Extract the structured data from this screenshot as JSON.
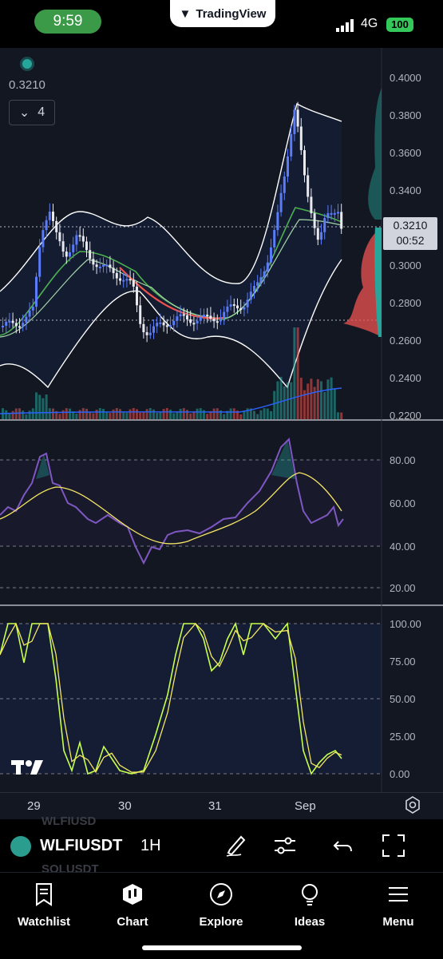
{
  "status_bar": {
    "time": "9:59",
    "app_name": "TradingView",
    "network": "4G",
    "battery": "100"
  },
  "chart": {
    "symbol": "WLFIUSDT",
    "interval": "1H",
    "current_value": "0.3210",
    "indicator_count": "4",
    "last_price": "0.3210",
    "countdown": "00:52",
    "price_axis_labels": [
      "0.4000",
      "0.3800",
      "0.3600",
      "0.3400",
      "0.3000",
      "0.2800",
      "0.2600",
      "0.2400",
      "0.2200"
    ],
    "rsi_axis_labels": [
      "80.00",
      "60.00",
      "40.00",
      "20.00"
    ],
    "stoch_axis_labels": [
      "100.00",
      "75.00",
      "50.00",
      "25.00",
      "0.00"
    ],
    "date_ticks": [
      "29",
      "30",
      "31",
      "Sep"
    ],
    "colors": {
      "background": "#131722",
      "up": "#26a69a",
      "down": "#ef5350",
      "rsi": "#7e57c2",
      "signal": "#f5e663",
      "stoch_k": "#c6ff4d"
    }
  },
  "ghost_symbols": {
    "above": "WLFIUSD",
    "below": "SOLUSDT"
  },
  "toolbar": {
    "draw_icon": "pen-icon",
    "settings_icon": "sliders-icon",
    "undo_icon": "undo-icon",
    "fullscreen_icon": "fullscreen-icon"
  },
  "nav": {
    "items": [
      {
        "label": "Watchlist",
        "icon": "watchlist-icon"
      },
      {
        "label": "Chart",
        "icon": "chart-icon"
      },
      {
        "label": "Explore",
        "icon": "compass-icon"
      },
      {
        "label": "Ideas",
        "icon": "lightbulb-icon"
      },
      {
        "label": "Menu",
        "icon": "menu-icon"
      }
    ]
  }
}
